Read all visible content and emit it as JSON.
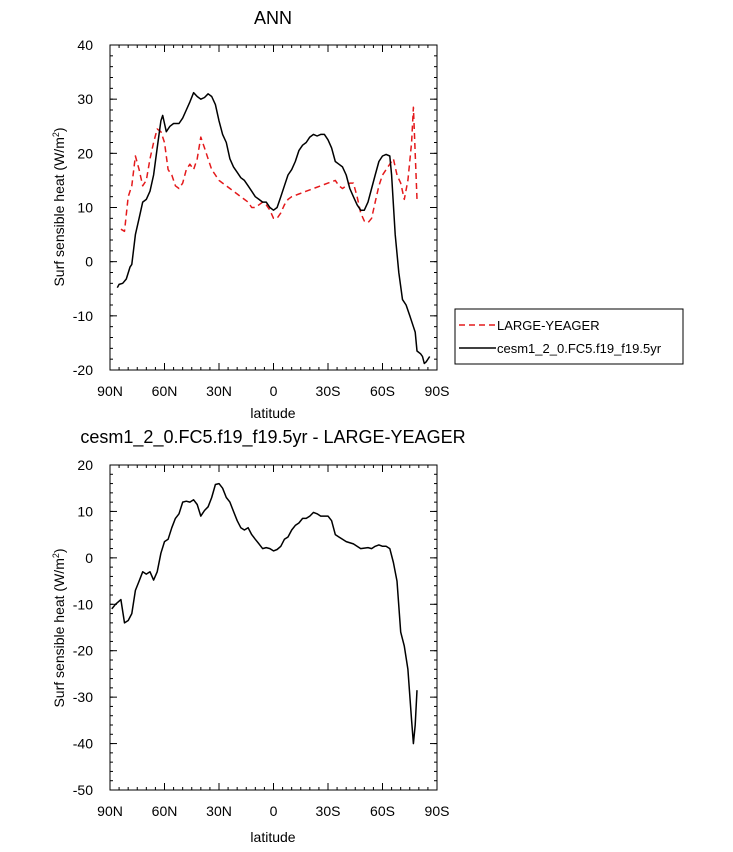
{
  "chart_data": [
    {
      "type": "line",
      "title": "ANN",
      "xlabel": "latitude",
      "ylabel": "Surf sensible heat (W/m",
      "ylabel_superscript": "2",
      "ylabel_suffix": ")",
      "xlim": [
        90,
        -90
      ],
      "ylim": [
        -20,
        40
      ],
      "x_ticks": [
        90,
        60,
        30,
        0,
        -30,
        -60,
        -90
      ],
      "x_tick_labels": [
        "90N",
        "60N",
        "30N",
        "0",
        "30S",
        "60S",
        "90S"
      ],
      "y_ticks": [
        -20,
        -10,
        0,
        10,
        20,
        30,
        40
      ],
      "y_tick_labels": [
        "-20",
        "-10",
        "0",
        "10",
        "20",
        "30",
        "40"
      ],
      "legend_placement": "right",
      "series": [
        {
          "name": "LARGE-YEAGER",
          "color": "#e41a1c",
          "dash": "dashed",
          "points": [
            [
              84,
              6
            ],
            [
              82,
              5.6
            ],
            [
              80,
              12
            ],
            [
              78,
              14
            ],
            [
              76,
              19.5
            ],
            [
              74,
              17
            ],
            [
              72,
              14
            ],
            [
              70,
              15
            ],
            [
              68,
              19
            ],
            [
              66,
              22
            ],
            [
              64,
              24.5
            ],
            [
              62,
              24
            ],
            [
              60,
              22
            ],
            [
              58,
              17
            ],
            [
              56,
              16
            ],
            [
              54,
              14
            ],
            [
              52,
              13.5
            ],
            [
              50,
              14.5
            ],
            [
              48,
              17
            ],
            [
              46,
              18
            ],
            [
              44,
              17
            ],
            [
              42,
              19
            ],
            [
              40,
              23
            ],
            [
              38,
              21
            ],
            [
              36,
              19
            ],
            [
              34,
              17
            ],
            [
              32,
              16
            ],
            [
              30,
              15
            ],
            [
              28,
              14.5
            ],
            [
              26,
              14
            ],
            [
              24,
              13.5
            ],
            [
              22,
              13
            ],
            [
              20,
              12.5
            ],
            [
              18,
              12
            ],
            [
              16,
              11.5
            ],
            [
              14,
              11
            ],
            [
              12,
              10
            ],
            [
              10,
              10
            ],
            [
              8,
              10.5
            ],
            [
              6,
              11
            ],
            [
              4,
              10.5
            ],
            [
              2,
              9.5
            ],
            [
              0,
              8
            ],
            [
              -2,
              8
            ],
            [
              -4,
              9
            ],
            [
              -6,
              10.5
            ],
            [
              -8,
              11.5
            ],
            [
              -10,
              12
            ],
            [
              -14,
              12.5
            ],
            [
              -18,
              13
            ],
            [
              -22,
              13.5
            ],
            [
              -26,
              14
            ],
            [
              -30,
              14.5
            ],
            [
              -34,
              15
            ],
            [
              -36,
              14
            ],
            [
              -38,
              13.5
            ],
            [
              -40,
              14
            ],
            [
              -42,
              14.5
            ],
            [
              -44,
              14.5
            ],
            [
              -46,
              12
            ],
            [
              -48,
              9
            ],
            [
              -50,
              7.5
            ],
            [
              -52,
              7.2
            ],
            [
              -54,
              8
            ],
            [
              -56,
              11
            ],
            [
              -58,
              14
            ],
            [
              -60,
              16
            ],
            [
              -62,
              17
            ],
            [
              -64,
              18
            ],
            [
              -66,
              19
            ],
            [
              -68,
              16
            ],
            [
              -70,
              14.5
            ],
            [
              -72,
              11.5
            ],
            [
              -74,
              15
            ],
            [
              -76,
              22
            ],
            [
              -77,
              28.5
            ],
            [
              -78,
              20
            ],
            [
              -79,
              11.5
            ]
          ]
        },
        {
          "name": "cesm1_2_0.FC5.f19_f19.5yr",
          "color": "#000000",
          "dash": "solid",
          "points": [
            [
              86,
              -4.8
            ],
            [
              85,
              -4.2
            ],
            [
              83,
              -4
            ],
            [
              81,
              -3.2
            ],
            [
              79,
              -1
            ],
            [
              78,
              -0.5
            ],
            [
              76,
              5
            ],
            [
              74,
              8
            ],
            [
              72,
              11
            ],
            [
              70,
              11.5
            ],
            [
              68,
              13
            ],
            [
              66,
              16
            ],
            [
              64,
              21
            ],
            [
              62,
              26
            ],
            [
              61,
              27
            ],
            [
              59,
              24
            ],
            [
              57,
              25
            ],
            [
              55,
              25.5
            ],
            [
              52,
              25.5
            ],
            [
              50,
              26.5
            ],
            [
              48,
              28
            ],
            [
              46,
              29.5
            ],
            [
              44,
              31.2
            ],
            [
              42,
              30.5
            ],
            [
              40,
              30
            ],
            [
              38,
              30.3
            ],
            [
              36,
              31
            ],
            [
              34,
              30.5
            ],
            [
              32,
              29
            ],
            [
              30,
              26
            ],
            [
              28,
              23.5
            ],
            [
              26,
              22
            ],
            [
              24,
              19
            ],
            [
              22,
              17.5
            ],
            [
              20,
              16.5
            ],
            [
              18,
              15.5
            ],
            [
              16,
              15
            ],
            [
              14,
              14
            ],
            [
              12,
              13
            ],
            [
              10,
              12
            ],
            [
              8,
              11.5
            ],
            [
              6,
              11
            ],
            [
              4,
              11
            ],
            [
              2,
              10
            ],
            [
              0,
              9.5
            ],
            [
              -2,
              10
            ],
            [
              -4,
              12
            ],
            [
              -6,
              14
            ],
            [
              -8,
              16
            ],
            [
              -10,
              17
            ],
            [
              -12,
              18.5
            ],
            [
              -14,
              20.5
            ],
            [
              -16,
              21.5
            ],
            [
              -18,
              22
            ],
            [
              -20,
              23
            ],
            [
              -22,
              23.5
            ],
            [
              -24,
              23.2
            ],
            [
              -26,
              23.5
            ],
            [
              -28,
              23.5
            ],
            [
              -30,
              22.5
            ],
            [
              -32,
              21
            ],
            [
              -34,
              18.5
            ],
            [
              -36,
              18
            ],
            [
              -38,
              17.5
            ],
            [
              -40,
              16
            ],
            [
              -42,
              13.5
            ],
            [
              -44,
              12
            ],
            [
              -46,
              10.5
            ],
            [
              -48,
              9.5
            ],
            [
              -50,
              9.5
            ],
            [
              -52,
              11
            ],
            [
              -54,
              13.5
            ],
            [
              -56,
              16
            ],
            [
              -58,
              18.5
            ],
            [
              -60,
              19.5
            ],
            [
              -62,
              19.8
            ],
            [
              -64,
              19.5
            ],
            [
              -65,
              16
            ],
            [
              -67,
              5
            ],
            [
              -69,
              -2
            ],
            [
              -71,
              -7
            ],
            [
              -73,
              -8
            ],
            [
              -75,
              -10
            ],
            [
              -77,
              -12
            ],
            [
              -78,
              -13
            ],
            [
              -79,
              -16.5
            ],
            [
              -81,
              -17
            ],
            [
              -82,
              -17.5
            ],
            [
              -83,
              -18.8
            ],
            [
              -84,
              -18.5
            ],
            [
              -86,
              -17.5
            ]
          ]
        }
      ]
    },
    {
      "type": "line",
      "title": "cesm1_2_0.FC5.f19_f19.5yr - LARGE-YEAGER",
      "xlabel": "latitude",
      "ylabel": "Surf sensible heat (W/m",
      "ylabel_superscript": "2",
      "ylabel_suffix": ")",
      "xlim": [
        90,
        -90
      ],
      "ylim": [
        -50,
        20
      ],
      "x_ticks": [
        90,
        60,
        30,
        0,
        -30,
        -60,
        -90
      ],
      "x_tick_labels": [
        "90N",
        "60N",
        "30N",
        "0",
        "30S",
        "60S",
        "90S"
      ],
      "y_ticks": [
        -50,
        -40,
        -30,
        -20,
        -10,
        0,
        10,
        20
      ],
      "y_tick_labels": [
        "-50",
        "-40",
        "-30",
        "-20",
        "-10",
        "0",
        "10",
        "20"
      ],
      "series": [
        {
          "color": "#000000",
          "dash": "solid",
          "points": [
            [
              89,
              -11
            ],
            [
              87,
              -10
            ],
            [
              84,
              -9
            ],
            [
              82,
              -14
            ],
            [
              80,
              -13.5
            ],
            [
              78,
              -12
            ],
            [
              76,
              -7
            ],
            [
              74,
              -5
            ],
            [
              72,
              -3
            ],
            [
              70,
              -3.5
            ],
            [
              68,
              -3
            ],
            [
              66,
              -4.8
            ],
            [
              64,
              -3
            ],
            [
              62,
              1
            ],
            [
              60,
              3.5
            ],
            [
              58,
              4
            ],
            [
              56,
              6.5
            ],
            [
              54,
              8.5
            ],
            [
              52,
              9.5
            ],
            [
              50,
              12
            ],
            [
              48,
              12.2
            ],
            [
              46,
              12
            ],
            [
              44,
              12.5
            ],
            [
              42,
              11.5
            ],
            [
              40,
              9
            ],
            [
              38,
              10.2
            ],
            [
              36,
              11
            ],
            [
              34,
              13
            ],
            [
              32,
              15.8
            ],
            [
              30,
              16
            ],
            [
              28,
              15
            ],
            [
              26,
              13
            ],
            [
              24,
              12
            ],
            [
              22,
              10
            ],
            [
              20,
              8
            ],
            [
              18,
              6.5
            ],
            [
              16,
              6
            ],
            [
              14,
              6.5
            ],
            [
              12,
              5
            ],
            [
              10,
              4
            ],
            [
              8,
              3
            ],
            [
              6,
              2
            ],
            [
              4,
              2.2
            ],
            [
              2,
              2
            ],
            [
              0,
              1.5
            ],
            [
              -2,
              1.8
            ],
            [
              -4,
              2.5
            ],
            [
              -6,
              4
            ],
            [
              -8,
              4.5
            ],
            [
              -10,
              6
            ],
            [
              -12,
              7
            ],
            [
              -14,
              7.5
            ],
            [
              -16,
              8.5
            ],
            [
              -18,
              8.5
            ],
            [
              -20,
              9
            ],
            [
              -22,
              9.8
            ],
            [
              -24,
              9.5
            ],
            [
              -26,
              9
            ],
            [
              -28,
              9
            ],
            [
              -30,
              9
            ],
            [
              -32,
              8
            ],
            [
              -34,
              5
            ],
            [
              -36,
              4.5
            ],
            [
              -38,
              4
            ],
            [
              -40,
              3.5
            ],
            [
              -44,
              3
            ],
            [
              -48,
              2
            ],
            [
              -52,
              2.2
            ],
            [
              -54,
              2
            ],
            [
              -56,
              2.5
            ],
            [
              -58,
              2.8
            ],
            [
              -60,
              2.5
            ],
            [
              -62,
              2.5
            ],
            [
              -64,
              2
            ],
            [
              -66,
              -1
            ],
            [
              -68,
              -5
            ],
            [
              -70,
              -16
            ],
            [
              -72,
              -19
            ],
            [
              -74,
              -24
            ],
            [
              -76,
              -35
            ],
            [
              -77,
              -40
            ],
            [
              -78,
              -36
            ],
            [
              -79,
              -28.5
            ]
          ]
        }
      ]
    }
  ]
}
